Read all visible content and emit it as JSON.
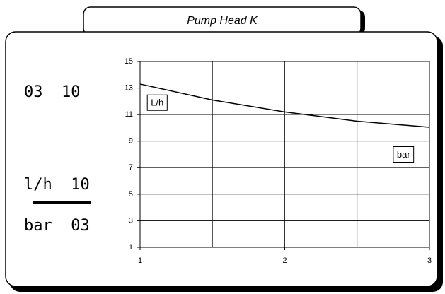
{
  "tab_title": "Pump Head K",
  "left_panel": {
    "reading": "03  10",
    "top_label": "l/h  10",
    "bottom_label": "bar  03"
  },
  "chart_data": {
    "type": "line",
    "x": [
      1,
      1.5,
      2,
      2.5,
      3
    ],
    "series": [
      {
        "color": "#000000",
        "values": [
          13.3,
          12.1,
          11.2,
          10.5,
          10.05
        ]
      }
    ],
    "xlim": [
      1,
      3
    ],
    "xticks": [
      1,
      2,
      3
    ],
    "xgrid": [
      1,
      1.5,
      2,
      2.5,
      3
    ],
    "ylim": [
      1,
      15
    ],
    "yticks": [
      1,
      3,
      5,
      7,
      9,
      11,
      13,
      15
    ],
    "grid": true,
    "annotations": [
      {
        "text": "L/h",
        "x": 1.05,
        "y": 11.9
      },
      {
        "text": "bar",
        "x": 2.75,
        "y": 8.0
      }
    ]
  }
}
